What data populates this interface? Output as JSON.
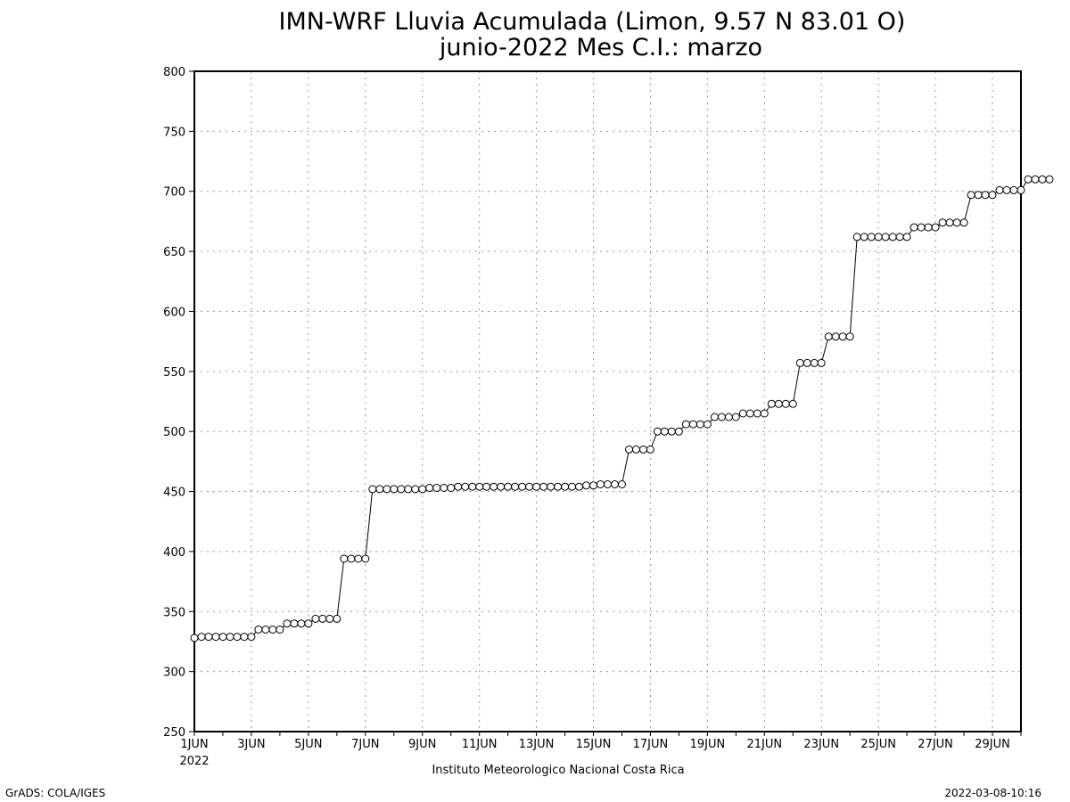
{
  "chart_data": {
    "type": "line",
    "title": "IMN-WRF  Lluvia Acumulada  (Limon, 9.57  N 83.01  O)",
    "subtitle": "junio-2022 Mes C.I.: marzo",
    "xlabel": "",
    "ylabel": "",
    "x_start": "2022-06-01",
    "x_end": "2022-06-30",
    "step_hours": 6,
    "x_tick_labels": [
      "1JUN",
      "3JUN",
      "5JUN",
      "7JUN",
      "9JUN",
      "11JUN",
      "13JUN",
      "15JUN",
      "17JUN",
      "19JUN",
      "21JUN",
      "23JUN",
      "25JUN",
      "27JUN",
      "29JUN"
    ],
    "x_year_label": "2022",
    "ylim": [
      250,
      800
    ],
    "y_ticks": [
      250,
      300,
      350,
      400,
      450,
      500,
      550,
      600,
      650,
      700,
      750,
      800
    ],
    "grid": true,
    "marker": "open-circle",
    "series": [
      {
        "values": [
          328,
          329,
          329,
          329,
          329,
          329,
          329,
          329,
          329,
          335,
          335,
          335,
          335,
          340,
          340,
          340,
          340,
          344,
          344,
          344,
          344,
          394,
          394,
          394,
          394,
          452,
          452,
          452,
          452,
          452,
          452,
          452,
          452,
          453,
          453,
          453,
          453,
          454,
          454,
          454,
          454,
          454,
          454,
          454,
          454,
          454,
          454,
          454,
          454,
          454,
          454,
          454,
          454,
          454,
          454,
          455,
          455,
          456,
          456,
          456,
          456,
          485,
          485,
          485,
          485,
          500,
          500,
          500,
          500,
          506,
          506,
          506,
          506,
          512,
          512,
          512,
          512,
          515,
          515,
          515,
          515,
          523,
          523,
          523,
          523,
          557,
          557,
          557,
          557,
          579,
          579,
          579,
          579,
          662,
          662,
          662,
          662,
          662,
          662,
          662,
          662,
          670,
          670,
          670,
          670,
          674,
          674,
          674,
          674,
          697,
          697,
          697,
          697,
          701,
          701,
          701,
          701,
          710,
          710,
          710,
          710
        ]
      }
    ]
  },
  "footer": {
    "institution": "Instituto Meteorologico Nacional Costa Rica",
    "credit": "GrADS: COLA/IGES",
    "timestamp": "2022-03-08-10:16"
  }
}
